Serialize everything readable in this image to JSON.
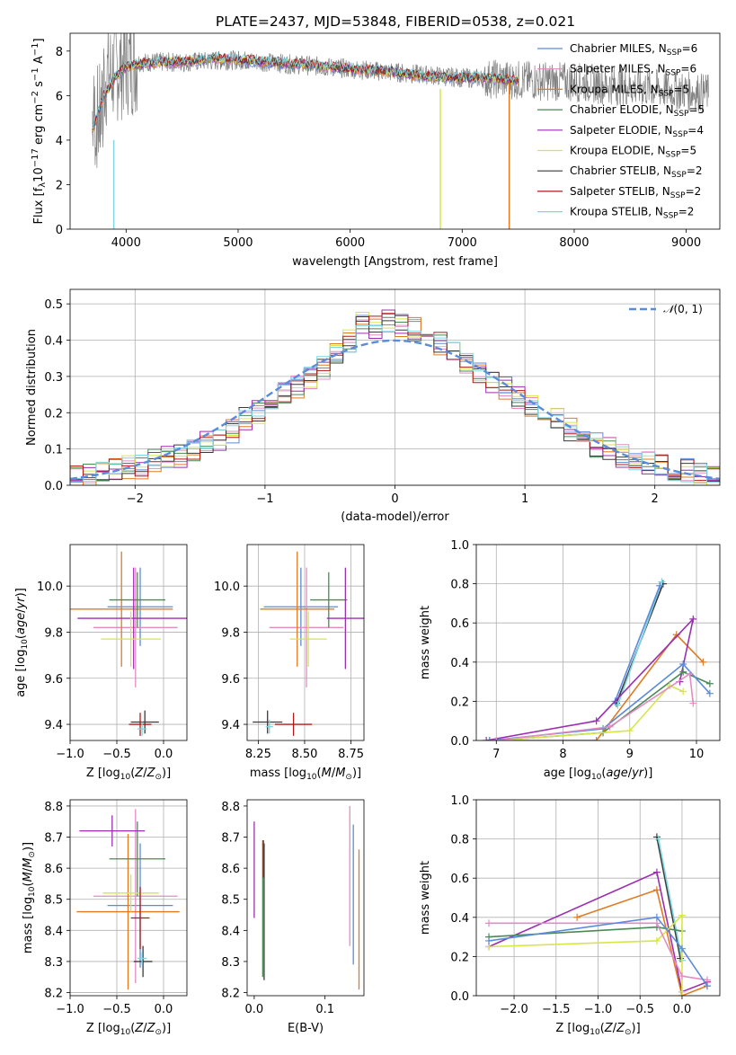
{
  "title": "PLATE=2437, MJD=53848, FIBERID=0538, z=0.021",
  "colors": {
    "Chabrier MILES": "#5b8bd9",
    "Salpeter MILES": "#e48bc5",
    "Kroupa MILES": "#e07b23",
    "Chabrier ELODIE": "#4a8a55",
    "Salpeter ELODIE": "#9b2fb0",
    "Kroupa ELODIE": "#d6e64a",
    "Chabrier STELIB": "#3a3a3a",
    "Salpeter STELIB": "#b01818",
    "Kroupa STELIB": "#7dd6e0",
    "data": "#808080",
    "gaussian": "#5b8bd9"
  },
  "chart_data": [
    {
      "type": "line",
      "title": "PLATE=2437, MJD=53848, FIBERID=0538, z=0.021",
      "xlabel": "wavelength [Angstrom, rest frame]",
      "ylabel": "Flux [f_λ 10^-17 erg cm^-2 s^-1 A^-1]",
      "xlim": [
        3500,
        9300
      ],
      "ylim": [
        0,
        8.8
      ],
      "xticks": [
        "4000",
        "5000",
        "6000",
        "7000",
        "8000",
        "9000"
      ],
      "yticks": [
        "0",
        "2",
        "4",
        "6",
        "8"
      ],
      "legend_position": "top-right",
      "series": [
        {
          "name": "Chabrier MILES, N_SSP=6"
        },
        {
          "name": "Salpeter MILES, N_SSP=6"
        },
        {
          "name": "Kroupa MILES, N_SSP=5"
        },
        {
          "name": "Chabrier ELODIE, N_SSP=5"
        },
        {
          "name": "Salpeter ELODIE, N_SSP=4"
        },
        {
          "name": "Kroupa ELODIE, N_SSP=5"
        },
        {
          "name": "Chabrier STELIB, N_SSP=2"
        },
        {
          "name": "Salpeter STELIB, N_SSP=2"
        },
        {
          "name": "Kroupa STELIB, N_SSP=2"
        }
      ],
      "model_curve": {
        "x": [
          3700,
          3800,
          3900,
          4000,
          4100,
          4300,
          4500,
          4800,
          5000,
          5300,
          5600,
          6000,
          6300,
          6600,
          7000,
          7200,
          7400,
          7600,
          7800
        ],
        "y": [
          4.5,
          6.0,
          6.8,
          7.3,
          7.4,
          7.5,
          7.5,
          7.7,
          7.6,
          7.5,
          7.4,
          7.2,
          7.1,
          6.9,
          6.8,
          6.8,
          6.7,
          6.6,
          6.5
        ]
      },
      "data_curve": {
        "x": [
          3700,
          4000,
          4500,
          5000,
          5500,
          6000,
          6500,
          7000,
          7500,
          8000,
          8500,
          9000,
          9200
        ],
        "y": [
          6.5,
          7.5,
          7.5,
          7.6,
          7.4,
          7.2,
          7.0,
          6.8,
          6.7,
          6.6,
          6.4,
          6.2,
          6.1
        ]
      }
    },
    {
      "type": "line",
      "xlabel": "(data-model)/error",
      "ylabel": "Normed distribution",
      "xlim": [
        -2.5,
        2.5
      ],
      "ylim": [
        0,
        0.54
      ],
      "xticks": [
        "−2",
        "−1",
        "0",
        "1",
        "2"
      ],
      "yticks": [
        "0.0",
        "0.1",
        "0.2",
        "0.3",
        "0.4",
        "0.5"
      ],
      "legend_position": "top-right",
      "gaussian_label": "N(0,1)",
      "histogram_bins": [
        -2.5,
        -2.4,
        -2.3,
        -2.2,
        -2.1,
        -2.0,
        -1.9,
        -1.8,
        -1.7,
        -1.6,
        -1.5,
        -1.4,
        -1.3,
        -1.2,
        -1.1,
        -1.0,
        -0.9,
        -0.8,
        -0.7,
        -0.6,
        -0.5,
        -0.4,
        -0.3,
        -0.2,
        -0.1,
        0.0,
        0.1,
        0.2,
        0.3,
        0.4,
        0.5,
        0.6,
        0.7,
        0.8,
        0.9,
        1.0,
        1.1,
        1.2,
        1.3,
        1.4,
        1.5,
        1.6,
        1.7,
        1.8,
        1.9,
        2.0,
        2.1,
        2.2,
        2.3,
        2.4,
        2.5
      ],
      "histogram_values": [
        0.03,
        0.03,
        0.04,
        0.05,
        0.05,
        0.05,
        0.07,
        0.08,
        0.08,
        0.1,
        0.12,
        0.13,
        0.15,
        0.18,
        0.2,
        0.23,
        0.25,
        0.27,
        0.3,
        0.32,
        0.36,
        0.4,
        0.45,
        0.44,
        0.45,
        0.44,
        0.43,
        0.41,
        0.39,
        0.36,
        0.34,
        0.31,
        0.29,
        0.27,
        0.24,
        0.22,
        0.2,
        0.18,
        0.15,
        0.13,
        0.11,
        0.1,
        0.08,
        0.07,
        0.06,
        0.05,
        0.04,
        0.04,
        0.03,
        0.03
      ]
    },
    {
      "type": "scatter",
      "xlabel": "Z [log10(Z/Z⊙)]",
      "ylabel": "age [log10(age/yr)]",
      "xlim": [
        -1.0,
        0.25
      ],
      "ylim": [
        9.33,
        10.18
      ],
      "xticks": [
        "−1.0",
        "−0.5",
        "0.0"
      ],
      "yticks": [
        "9.4",
        "9.6",
        "9.8",
        "10.0"
      ],
      "points": [
        {
          "x": -0.25,
          "y": 9.91,
          "xerr": 0.35,
          "yerr": 0.17
        },
        {
          "x": -0.3,
          "y": 9.82,
          "xerr": 0.45,
          "yerr": 0.26
        },
        {
          "x": -0.45,
          "y": 9.9,
          "xerr": 0.55,
          "yerr": 0.25
        },
        {
          "x": -0.28,
          "y": 9.94,
          "xerr": 0.3,
          "yerr": 0.12
        },
        {
          "x": -0.32,
          "y": 9.86,
          "xerr": 0.6,
          "yerr": 0.22
        },
        {
          "x": -0.35,
          "y": 9.77,
          "xerr": 0.32,
          "yerr": 0.12
        },
        {
          "x": -0.2,
          "y": 9.41,
          "xerr": 0.15,
          "yerr": 0.05
        },
        {
          "x": -0.25,
          "y": 9.4,
          "xerr": 0.12,
          "yerr": 0.05
        },
        {
          "x": -0.23,
          "y": 9.38,
          "xerr": 0.05,
          "yerr": 0.03
        }
      ]
    },
    {
      "type": "scatter",
      "xlabel": "mass [log10(M/M⊙)]",
      "ylabel": "",
      "xlim": [
        8.19,
        8.82
      ],
      "ylim": [
        9.33,
        10.18
      ],
      "xticks": [
        "8.25",
        "8.50",
        "8.75"
      ],
      "yticks": [
        "9.4",
        "9.6",
        "9.8",
        "10.0"
      ],
      "points": [
        {
          "x": 8.48,
          "y": 9.91,
          "xerr": 0.2,
          "yerr": 0.17
        },
        {
          "x": 8.51,
          "y": 9.82,
          "xerr": 0.2,
          "yerr": 0.26
        },
        {
          "x": 8.46,
          "y": 9.9,
          "xerr": 0.2,
          "yerr": 0.25
        },
        {
          "x": 8.63,
          "y": 9.94,
          "xerr": 0.1,
          "yerr": 0.12
        },
        {
          "x": 8.72,
          "y": 9.86,
          "xerr": 0.1,
          "yerr": 0.22
        },
        {
          "x": 8.52,
          "y": 9.77,
          "xerr": 0.1,
          "yerr": 0.12
        },
        {
          "x": 8.3,
          "y": 9.41,
          "xerr": 0.08,
          "yerr": 0.05
        },
        {
          "x": 8.44,
          "y": 9.4,
          "xerr": 0.1,
          "yerr": 0.05
        },
        {
          "x": 8.31,
          "y": 9.39,
          "xerr": 0.02,
          "yerr": 0.03
        }
      ]
    },
    {
      "type": "line",
      "xlabel": "age [log10(age/yr)]",
      "ylabel": "mass weight",
      "xlim": [
        6.7,
        10.35
      ],
      "ylim": [
        0,
        1.0
      ],
      "xticks": [
        "7",
        "8",
        "9",
        "10"
      ],
      "yticks": [
        "0.0",
        "0.2",
        "0.4",
        "0.6",
        "0.8",
        "1.0"
      ]
    },
    {
      "type": "scatter",
      "xlabel": "Z [log10(Z/Z⊙)]",
      "ylabel": "mass [log10(M/M⊙)]",
      "xlim": [
        -1.0,
        0.25
      ],
      "ylim": [
        8.19,
        8.82
      ],
      "xticks": [
        "−1.0",
        "−0.5",
        "0.0"
      ],
      "yticks": [
        "8.2",
        "8.3",
        "8.4",
        "8.5",
        "8.6",
        "8.7",
        "8.8"
      ]
    },
    {
      "type": "scatter",
      "xlabel": "E(B-V)",
      "ylabel": "",
      "xlim": [
        -0.01,
        0.155
      ],
      "ylim": [
        8.19,
        8.82
      ],
      "xticks": [
        "0.0",
        "0.1"
      ],
      "yticks": [
        "8.2",
        "8.3",
        "8.4",
        "8.5",
        "8.6",
        "8.7",
        "8.8"
      ]
    },
    {
      "type": "line",
      "xlabel": "Z [log10(Z/Z⊙)]",
      "ylabel": "mass weight",
      "xlim": [
        -2.45,
        0.45
      ],
      "ylim": [
        0,
        1.0
      ],
      "xticks": [
        "−2.0",
        "−1.5",
        "−1.0",
        "−0.5",
        "0.0"
      ],
      "yticks": [
        "0.0",
        "0.2",
        "0.4",
        "0.6",
        "0.8",
        "1.0"
      ]
    }
  ]
}
